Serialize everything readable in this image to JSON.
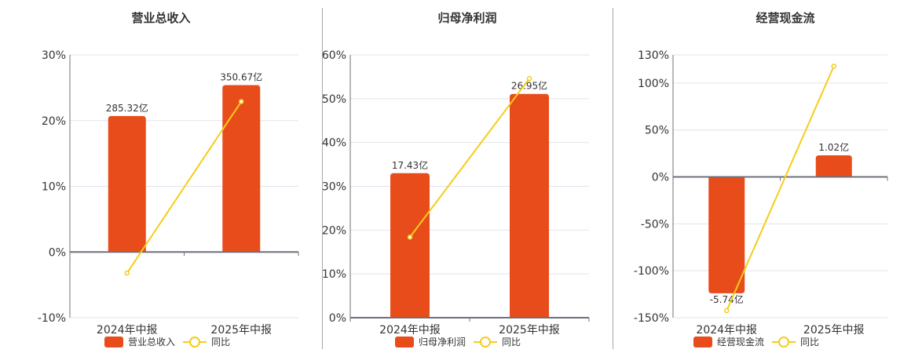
{
  "colors": {
    "bar": "#e84c1b",
    "line": "#f5cd18",
    "grid": "#e0e4ee",
    "axis": "#6e7079"
  },
  "categories": [
    "2024年中报",
    "2025年中报"
  ],
  "legend_yoy": "同比",
  "chart_data": [
    {
      "type": "bar",
      "title": "营业总收入",
      "categories": [
        "2024年中报",
        "2025年中报"
      ],
      "series": [
        {
          "name": "营业总收入",
          "type": "bar",
          "values_pct_axis": [
            20.7,
            25.4
          ],
          "labels": [
            "285.32亿",
            "350.67亿"
          ]
        },
        {
          "name": "同比",
          "type": "line",
          "values": [
            -3.2,
            22.9
          ]
        }
      ],
      "yticks": [
        "30%",
        "20%",
        "10%",
        "0%",
        "-10%"
      ],
      "ylim": [
        -10,
        30
      ],
      "xlabel": "",
      "ylabel": ""
    },
    {
      "type": "bar",
      "title": "归母净利润",
      "categories": [
        "2024年中报",
        "2025年中报"
      ],
      "series": [
        {
          "name": "归母净利润",
          "type": "bar",
          "values_pct_axis": [
            33.0,
            51.1
          ],
          "labels": [
            "17.43亿",
            "26.95亿"
          ]
        },
        {
          "name": "同比",
          "type": "line",
          "values": [
            18.4,
            54.6
          ]
        }
      ],
      "yticks": [
        "60%",
        "50%",
        "40%",
        "30%",
        "20%",
        "10%",
        "0%"
      ],
      "ylim": [
        0,
        60
      ],
      "xlabel": "",
      "ylabel": ""
    },
    {
      "type": "bar",
      "title": "经营现金流",
      "categories": [
        "2024年中报",
        "2025年中报"
      ],
      "series": [
        {
          "name": "经营现金流",
          "type": "bar",
          "values_pct_axis": [
            -124,
            23
          ],
          "labels": [
            "-5.74亿",
            "1.02亿"
          ]
        },
        {
          "name": "同比",
          "type": "line",
          "values": [
            -142.5,
            118
          ]
        }
      ],
      "yticks": [
        "130%",
        "100%",
        "50%",
        "0%",
        "-50%",
        "-100%",
        "-150%"
      ],
      "ytick_values": [
        130,
        100,
        50,
        0,
        -50,
        -100,
        -150
      ],
      "ylim": [
        -150,
        130
      ],
      "xlabel": "",
      "ylabel": ""
    }
  ],
  "panels": [
    {
      "title": "营业总收入",
      "legend_bar": "营业总收入"
    },
    {
      "title": "归母净利润",
      "legend_bar": "归母净利润"
    },
    {
      "title": "经营现金流",
      "legend_bar": "经营现金流"
    }
  ]
}
